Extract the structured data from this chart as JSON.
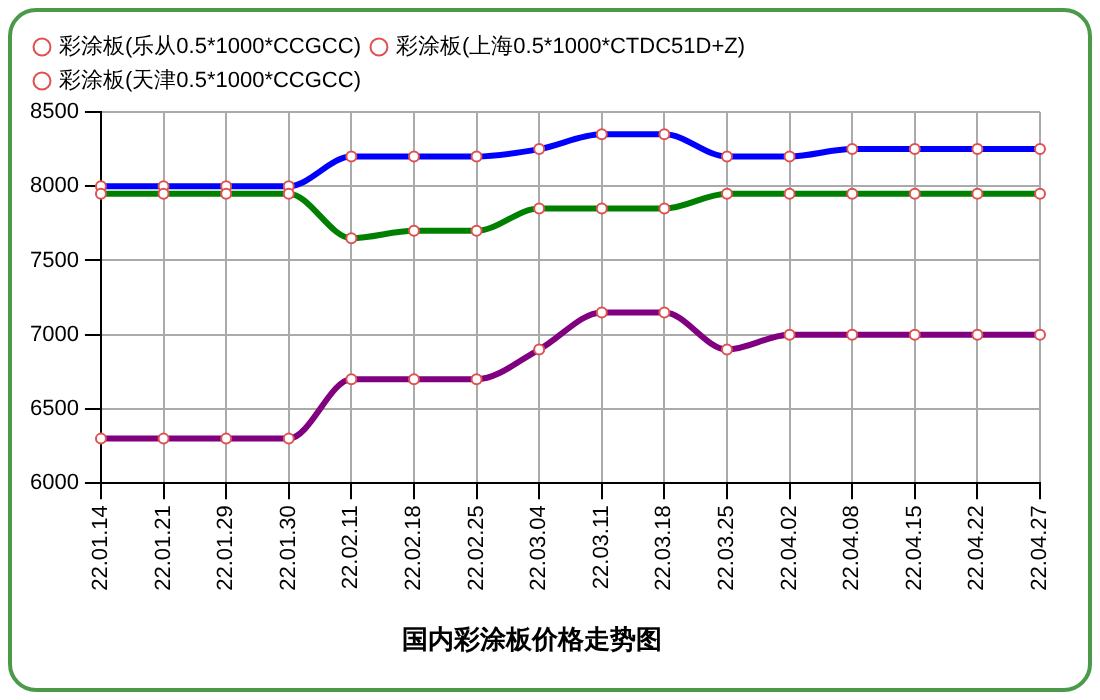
{
  "chart_data": {
    "type": "line",
    "title": "国内彩涂板价格走势图",
    "categories": [
      "22.01.14",
      "22.01.21",
      "22.01.29",
      "22.01.30",
      "22.02.11",
      "22.02.18",
      "22.02.25",
      "22.03.04",
      "22.03.11",
      "22.03.18",
      "22.03.25",
      "22.04.02",
      "22.04.08",
      "22.04.15",
      "22.04.22",
      "22.04.27"
    ],
    "series": [
      {
        "name": "彩涂板(乐从0.5*1000*CCGCC)",
        "color": "#008000",
        "values": [
          7950,
          7950,
          7950,
          7950,
          7650,
          7700,
          7700,
          7850,
          7850,
          7850,
          7950,
          7950,
          7950,
          7950,
          7950,
          7950
        ]
      },
      {
        "name": "彩涂板(上海0.5*1000*CTDC51D+Z)",
        "color": "#0000ff",
        "values": [
          8000,
          8000,
          8000,
          8000,
          8200,
          8200,
          8200,
          8250,
          8350,
          8350,
          8200,
          8200,
          8250,
          8250,
          8250,
          8250
        ]
      },
      {
        "name": "彩涂板(天津0.5*1000*CCGCC)",
        "color": "#800080",
        "values": [
          6300,
          6300,
          6300,
          6300,
          6700,
          6700,
          6700,
          6900,
          7150,
          7150,
          6900,
          7000,
          7000,
          7000,
          7000,
          7000
        ]
      }
    ],
    "ylim": [
      6000,
      8500
    ],
    "yticks": [
      6000,
      6500,
      7000,
      7500,
      8000,
      8500
    ],
    "grid": true,
    "legend": "top",
    "marker": "circle",
    "line_style": "solid"
  }
}
